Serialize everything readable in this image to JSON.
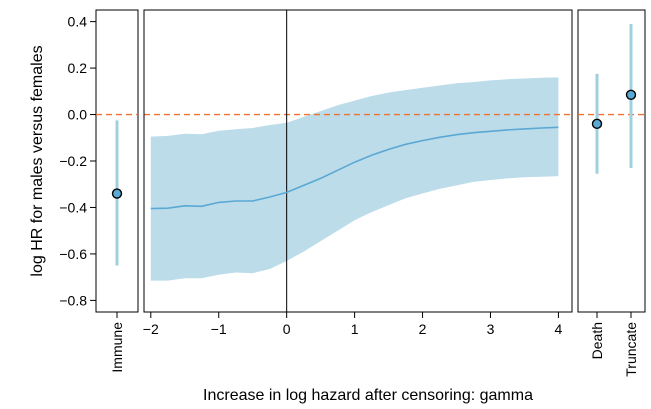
{
  "chart_data": {
    "type": "line",
    "xlabel": "Increase in log hazard after censoring: gamma",
    "ylabel": "log HR for males versus females",
    "ylim": [
      -0.85,
      0.45
    ],
    "yticks": [
      -0.8,
      -0.6,
      -0.4,
      -0.2,
      0.0,
      0.2,
      0.4
    ],
    "ytick_labels": [
      "−0.8",
      "−0.6",
      "−0.4",
      "−0.2",
      "0.0",
      "0.2",
      "0.4"
    ],
    "xlim": [
      -2.1,
      4.2
    ],
    "xticks": [
      -2,
      -1,
      0,
      1,
      2,
      3,
      4
    ],
    "xtick_labels": [
      "−2",
      "−1",
      "0",
      "1",
      "2",
      "3",
      "4"
    ],
    "reference_line": {
      "y": 0.0,
      "color": "#f07030",
      "style": "dashed"
    },
    "vertical_line": {
      "x": 0
    },
    "colors": {
      "band": "#bcdcea",
      "line": "#5aa8d4",
      "marker_fill": "#5aa8d4",
      "whisker": "#9fd0e0"
    },
    "sensitivity": {
      "gamma": [
        -2,
        -1.75,
        -1.5,
        -1.25,
        -1,
        -0.75,
        -0.5,
        -0.25,
        0,
        0.25,
        0.5,
        0.75,
        1,
        1.25,
        1.5,
        1.75,
        2,
        2.25,
        2.5,
        2.75,
        3,
        3.25,
        3.5,
        3.75,
        4
      ],
      "estimate": [
        -0.405,
        -0.403,
        -0.393,
        -0.395,
        -0.378,
        -0.372,
        -0.372,
        -0.355,
        -0.335,
        -0.305,
        -0.275,
        -0.24,
        -0.205,
        -0.175,
        -0.15,
        -0.128,
        -0.112,
        -0.098,
        -0.087,
        -0.078,
        -0.072,
        -0.066,
        -0.062,
        -0.058,
        -0.055
      ],
      "lower": [
        -0.715,
        -0.715,
        -0.705,
        -0.705,
        -0.69,
        -0.68,
        -0.683,
        -0.665,
        -0.63,
        -0.59,
        -0.545,
        -0.5,
        -0.455,
        -0.42,
        -0.39,
        -0.36,
        -0.34,
        -0.32,
        -0.305,
        -0.29,
        -0.282,
        -0.275,
        -0.27,
        -0.268,
        -0.265
      ],
      "upper": [
        -0.095,
        -0.092,
        -0.083,
        -0.085,
        -0.07,
        -0.063,
        -0.058,
        -0.045,
        -0.035,
        -0.01,
        0.015,
        0.04,
        0.06,
        0.08,
        0.095,
        0.105,
        0.115,
        0.125,
        0.135,
        0.14,
        0.147,
        0.152,
        0.155,
        0.158,
        0.16
      ]
    },
    "point_estimates": [
      {
        "label": "Immune",
        "estimate": -0.34,
        "lower": -0.65,
        "upper": -0.025
      },
      {
        "label": "Death",
        "estimate": -0.04,
        "lower": -0.255,
        "upper": 0.175
      },
      {
        "label": "Truncate",
        "estimate": 0.085,
        "lower": -0.23,
        "upper": 0.39
      }
    ]
  }
}
